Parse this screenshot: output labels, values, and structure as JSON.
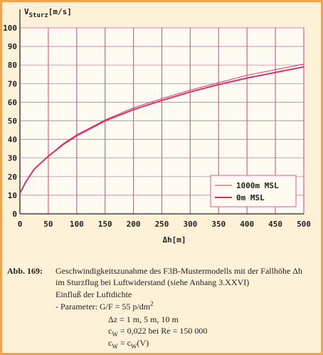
{
  "chart_data": {
    "type": "line",
    "ylabel": [
      "V",
      {
        "sub": "Sturz"
      },
      "[m/s]"
    ],
    "xlabel": "Δh[m]",
    "x": [
      0,
      10,
      25,
      50,
      75,
      100,
      150,
      200,
      250,
      300,
      350,
      400,
      450,
      500
    ],
    "series": [
      {
        "name": "1000m  MSL",
        "color": "#d6336c",
        "width": 1,
        "values": [
          11,
          17,
          24,
          31,
          37.5,
          42.5,
          50.5,
          57,
          62,
          66.5,
          70.5,
          74.5,
          77.5,
          80.5
        ]
      },
      {
        "name": "0m     MSL",
        "color": "#d6336c",
        "width": 2,
        "values": [
          11,
          17,
          24,
          31,
          37,
          42,
          50,
          56,
          61,
          65.5,
          69.5,
          73,
          76,
          79
        ]
      }
    ],
    "xlim": [
      0,
      500
    ],
    "xticks": [
      0,
      50,
      100,
      150,
      200,
      250,
      300,
      350,
      400,
      450,
      500
    ],
    "ylim": [
      0,
      100
    ],
    "yticks": [
      0,
      10,
      20,
      30,
      40,
      50,
      60,
      70,
      80,
      90,
      100
    ],
    "grid": true,
    "grid_color": "#e8559a",
    "legend": "lower right"
  },
  "caption": {
    "label": "Abb. 169:",
    "lines": [
      [
        "Geschwindigkeitszunahme des F3B-Mustermodells mit der Fallhöhe  Δh"
      ],
      [
        "im Sturzflug bei Luftwiderstand  (siehe Anhang  3.XXVI)"
      ],
      [
        "Einfluß der Luftdichte"
      ],
      [
        "-  Parameter:  G/F  =  55 p/dm",
        {
          "sup": "2"
        }
      ],
      [
        "Δz  =  1 m,  5 m,  10 m"
      ],
      [
        "c",
        {
          "sub": "W"
        },
        "  =  0,022  bei  Re  =  150 000"
      ],
      [
        "c",
        {
          "sub": "W"
        },
        "  =  c",
        {
          "sub": "W"
        },
        "(V)"
      ]
    ]
  }
}
